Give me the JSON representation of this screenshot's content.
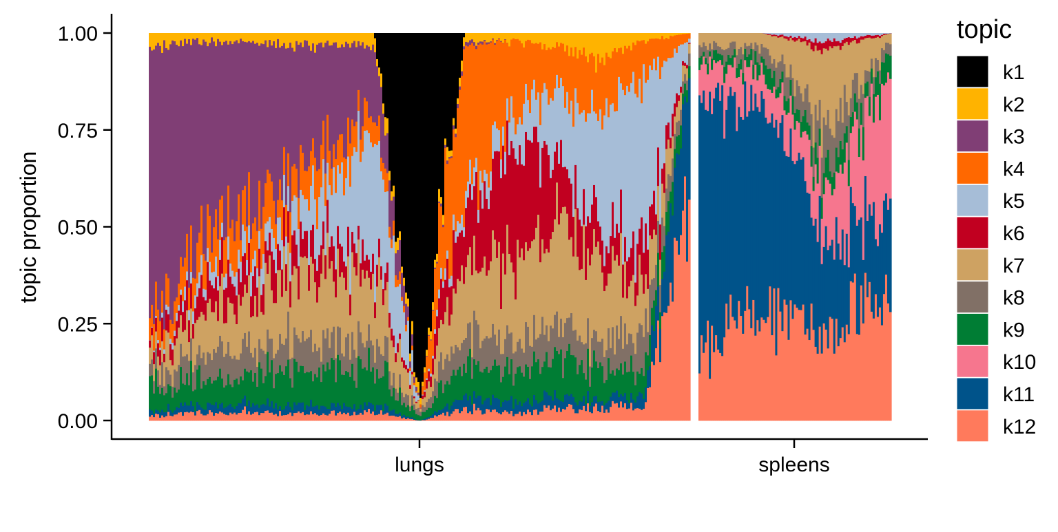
{
  "chart_data": {
    "type": "bar",
    "subtype": "stacked-structure-plot",
    "title": "",
    "xlabel": "",
    "ylabel": "topic proportion",
    "ylim": [
      0,
      1
    ],
    "y_ticks": [
      "0.00",
      "0.25",
      "0.50",
      "0.75",
      "1.00"
    ],
    "x_groups": [
      "lungs",
      "spleens"
    ],
    "grid": false,
    "legend_position": "right",
    "legend_title": "topic",
    "topics": [
      {
        "name": "k1",
        "color": "#000000"
      },
      {
        "name": "k2",
        "color": "#FFB300"
      },
      {
        "name": "k3",
        "color": "#803E75"
      },
      {
        "name": "k4",
        "color": "#FF6800"
      },
      {
        "name": "k5",
        "color": "#A6BDD7"
      },
      {
        "name": "k6",
        "color": "#C10020"
      },
      {
        "name": "k7",
        "color": "#CEA262"
      },
      {
        "name": "k8",
        "color": "#817066"
      },
      {
        "name": "k9",
        "color": "#007D34"
      },
      {
        "name": "k10",
        "color": "#F6768E"
      },
      {
        "name": "k11",
        "color": "#00538A"
      },
      {
        "name": "k12",
        "color": "#FF7A5C"
      }
    ],
    "series": [
      {
        "name": "lungs",
        "values": [
          [
            0.0,
            0.03,
            0.75,
            0.05,
            0.0,
            0.02,
            0.04,
            0.03,
            0.06,
            0.0,
            0.01,
            0.01
          ],
          [
            0.0,
            0.02,
            0.55,
            0.08,
            0.03,
            0.06,
            0.09,
            0.06,
            0.07,
            0.0,
            0.02,
            0.02
          ],
          [
            0.0,
            0.02,
            0.45,
            0.1,
            0.05,
            0.07,
            0.13,
            0.07,
            0.07,
            0.0,
            0.02,
            0.02
          ],
          [
            0.0,
            0.03,
            0.35,
            0.08,
            0.08,
            0.08,
            0.18,
            0.08,
            0.08,
            0.0,
            0.02,
            0.02
          ],
          [
            0.0,
            0.03,
            0.28,
            0.1,
            0.14,
            0.07,
            0.18,
            0.07,
            0.09,
            0.0,
            0.02,
            0.02
          ],
          [
            0.0,
            0.03,
            0.15,
            0.05,
            0.35,
            0.05,
            0.17,
            0.06,
            0.1,
            0.0,
            0.02,
            0.02
          ],
          [
            0.95,
            0.02,
            0.0,
            0.0,
            0.0,
            0.0,
            0.01,
            0.01,
            0.01,
            0.0,
            0.0,
            0.0
          ],
          [
            0.0,
            0.02,
            0.01,
            0.4,
            0.04,
            0.14,
            0.16,
            0.08,
            0.09,
            0.0,
            0.03,
            0.03
          ],
          [
            0.0,
            0.02,
            0.0,
            0.2,
            0.07,
            0.3,
            0.2,
            0.08,
            0.08,
            0.0,
            0.03,
            0.02
          ],
          [
            0.0,
            0.03,
            0.0,
            0.12,
            0.16,
            0.17,
            0.28,
            0.08,
            0.1,
            0.0,
            0.03,
            0.03
          ],
          [
            0.0,
            0.07,
            0.0,
            0.15,
            0.28,
            0.08,
            0.22,
            0.07,
            0.08,
            0.0,
            0.02,
            0.03
          ],
          [
            0.0,
            0.02,
            0.0,
            0.1,
            0.41,
            0.1,
            0.13,
            0.1,
            0.07,
            0.0,
            0.03,
            0.04
          ],
          [
            0.0,
            0.0,
            0.0,
            0.01,
            0.01,
            0.0,
            0.02,
            0.03,
            0.04,
            0.0,
            0.3,
            0.59
          ]
        ]
      },
      {
        "name": "spleens",
        "values": [
          [
            0.0,
            0.0,
            0.0,
            0.0,
            0.0,
            0.0,
            0.03,
            0.02,
            0.02,
            0.08,
            0.7,
            0.15
          ],
          [
            0.0,
            0.0,
            0.0,
            0.0,
            0.0,
            0.0,
            0.03,
            0.03,
            0.03,
            0.08,
            0.55,
            0.28
          ],
          [
            0.0,
            0.0,
            0.0,
            0.0,
            0.02,
            0.02,
            0.2,
            0.1,
            0.05,
            0.12,
            0.24,
            0.25
          ],
          [
            0.0,
            0.0,
            0.0,
            0.0,
            0.0,
            0.0,
            0.02,
            0.02,
            0.06,
            0.35,
            0.2,
            0.35
          ]
        ]
      }
    ]
  }
}
